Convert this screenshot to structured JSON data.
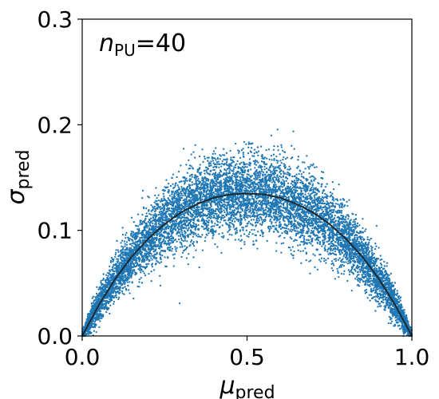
{
  "chart_data": {
    "type": "scatter",
    "title": "",
    "xlabel": {
      "main": "μ",
      "sub": "pred"
    },
    "ylabel": {
      "main": "σ",
      "sub": "pred"
    },
    "xlim": [
      0.0,
      1.0
    ],
    "ylim": [
      0.0,
      0.3
    ],
    "x_ticks": [
      "0.0",
      "0.5",
      "1.0"
    ],
    "y_ticks": [
      "0.0",
      "0.1",
      "0.2",
      "0.3"
    ],
    "annotation": {
      "main": "n",
      "sub": "PU",
      "rest": "=40"
    },
    "grid": false,
    "legend": "none",
    "point_color": "#1f77b4",
    "curve_color": "#1b2a33",
    "points_count_approx": 9000,
    "envelope": {
      "description": "scatter band around curve",
      "x": [
        0.0,
        0.05,
        0.1,
        0.15,
        0.2,
        0.25,
        0.3,
        0.35,
        0.4,
        0.45,
        0.5,
        0.55,
        0.6,
        0.65,
        0.7,
        0.75,
        0.8,
        0.85,
        0.9,
        0.95,
        1.0
      ],
      "y_low": [
        0.0,
        0.015,
        0.03,
        0.045,
        0.058,
        0.07,
        0.08,
        0.09,
        0.095,
        0.1,
        0.1,
        0.1,
        0.095,
        0.09,
        0.08,
        0.07,
        0.058,
        0.045,
        0.03,
        0.015,
        0.0
      ],
      "y_high": [
        0.01,
        0.05,
        0.075,
        0.1,
        0.12,
        0.14,
        0.155,
        0.165,
        0.17,
        0.175,
        0.18,
        0.178,
        0.17,
        0.165,
        0.155,
        0.14,
        0.12,
        0.1,
        0.075,
        0.05,
        0.01
      ]
    },
    "series": [
      {
        "type": "line",
        "x": [
          0.0,
          0.05,
          0.1,
          0.15,
          0.2,
          0.25,
          0.3,
          0.35,
          0.4,
          0.45,
          0.5,
          0.55,
          0.6,
          0.65,
          0.7,
          0.75,
          0.8,
          0.85,
          0.9,
          0.95,
          1.0
        ],
        "y": [
          0.0,
          0.029,
          0.054,
          0.075,
          0.092,
          0.106,
          0.117,
          0.125,
          0.131,
          0.134,
          0.135,
          0.134,
          0.131,
          0.125,
          0.117,
          0.106,
          0.092,
          0.075,
          0.054,
          0.029,
          0.0
        ]
      }
    ]
  }
}
